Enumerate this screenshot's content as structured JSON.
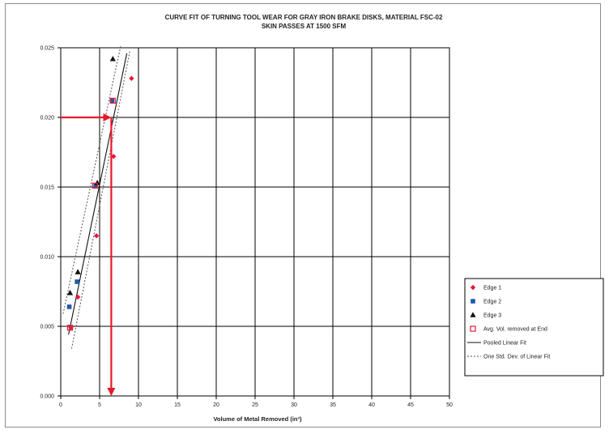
{
  "chart_data": {
    "type": "scatter",
    "title_line1": "CURVE FIT OF TURNING TOOL WEAR FOR GRAY IRON BRAKE DISKS, MATERIAL FSC-02",
    "title_line2": "SKIN PASSES AT 1500 SFM",
    "xlabel": "Volume of Metal Removed (in³)",
    "ylabel": "",
    "xlim": [
      0,
      50
    ],
    "ylim": [
      0,
      0.025
    ],
    "x_ticks": [
      "0",
      "5",
      "10",
      "15",
      "20",
      "25",
      "30",
      "35",
      "40",
      "45",
      "50"
    ],
    "y_ticks": [
      "0.000",
      "0.005",
      "0.010",
      "0.015",
      "0.020",
      "0.025"
    ],
    "grid": true,
    "legend_position": "right",
    "series": [
      {
        "name": "Edge 1",
        "marker": "diamond",
        "color": "#e8183c",
        "points": [
          [
            1.3,
            0.0049
          ],
          [
            2.2,
            0.0071
          ],
          [
            4.6,
            0.0115
          ],
          [
            6.8,
            0.0172
          ],
          [
            9.1,
            0.0228
          ]
        ]
      },
      {
        "name": "Edge 2",
        "marker": "square",
        "color": "#1e5aa8",
        "points": [
          [
            1.1,
            0.0064
          ],
          [
            2.1,
            0.0082
          ],
          [
            4.5,
            0.0151
          ],
          [
            6.6,
            0.0212
          ]
        ]
      },
      {
        "name": "Edge 3",
        "marker": "triangle",
        "color": "#111111",
        "points": [
          [
            1.2,
            0.0074
          ],
          [
            2.2,
            0.0089
          ],
          [
            4.7,
            0.0153
          ],
          [
            6.7,
            0.0242
          ]
        ]
      },
      {
        "name": "Avg. Vol. removed at End",
        "marker": "square-outline",
        "color": "#e8183c",
        "points": [
          [
            1.2,
            0.0049
          ],
          [
            4.4,
            0.0151
          ],
          [
            6.7,
            0.0212
          ]
        ]
      }
    ],
    "fit_lines": [
      {
        "name": "Pooled Linear Fit",
        "style": "solid",
        "color": "#111111",
        "points": [
          [
            1.0,
            0.0044
          ],
          [
            8.5,
            0.0246
          ]
        ]
      },
      {
        "name": "One Std. Dev. of Linear Fit",
        "style": "dotted",
        "color": "#555555",
        "points": [
          [
            0.3,
            0.0059
          ],
          [
            7.7,
            0.0251
          ]
        ]
      },
      {
        "name": "",
        "style": "dotted",
        "color": "#555555",
        "points": [
          [
            1.4,
            0.0034
          ],
          [
            8.9,
            0.0248
          ]
        ]
      }
    ],
    "annotation_arrows": {
      "color": "#e8182c",
      "horizontal": {
        "from": [
          0,
          0.02
        ],
        "to": [
          6.5,
          0.02
        ]
      },
      "vertical": {
        "from": [
          6.5,
          0.02
        ],
        "to": [
          6.5,
          0.0
        ]
      }
    }
  }
}
